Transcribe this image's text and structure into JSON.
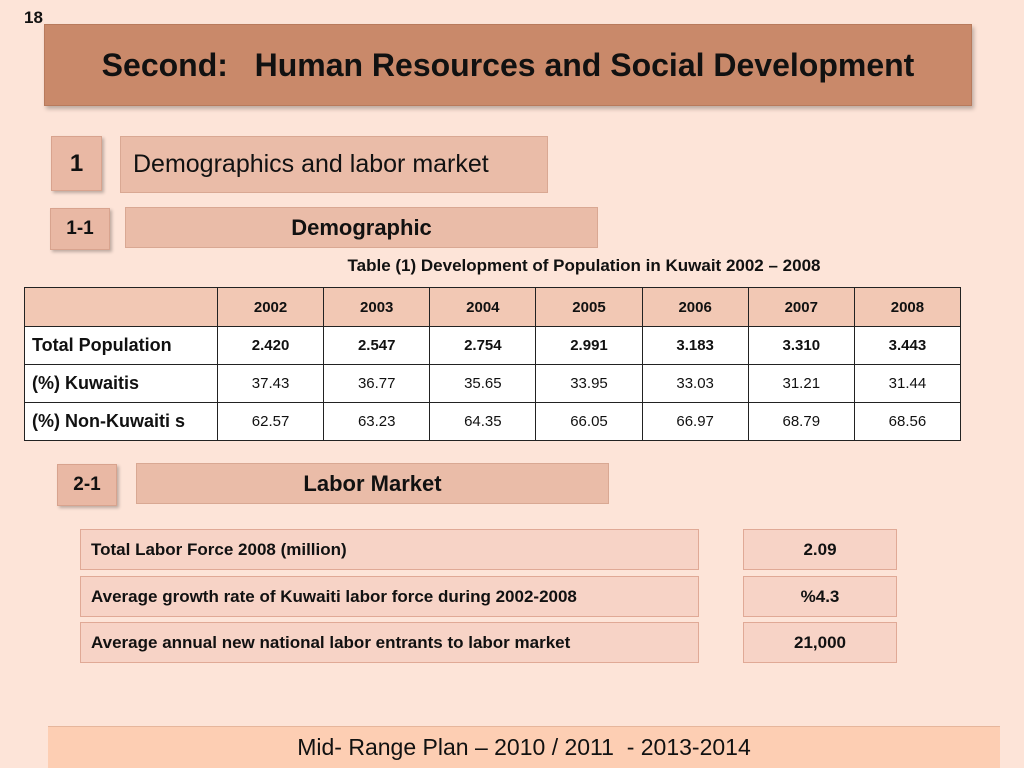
{
  "slide_number": "18",
  "title": "Second:   Human Resources and Social Development",
  "section1": {
    "number": "1",
    "title": "Demographics and labor market"
  },
  "section11": {
    "number": "1-1",
    "title": "Demographic"
  },
  "table": {
    "caption": "Table (1) Development of Population in Kuwait 2002 – 2008",
    "header_blank": "",
    "years": [
      "2002",
      "2003",
      "2004",
      "2005",
      "2006",
      "2007",
      "2008"
    ],
    "rows": [
      {
        "label": "Total Population",
        "values": [
          "2.420",
          "2.547",
          "2.754",
          "2.991",
          "3.183",
          "3.310",
          "3.443"
        ]
      },
      {
        "label": "(%) Kuwaitis",
        "values": [
          "37.43",
          "36.77",
          "35.65",
          "33.95",
          "33.03",
          "31.21",
          "31.44"
        ]
      },
      {
        "label": "(%) Non-Kuwaiti s",
        "values": [
          "62.57",
          "63.23",
          "64.35",
          "66.05",
          "66.97",
          "68.79",
          "68.56"
        ]
      }
    ]
  },
  "section21": {
    "number": "2-1",
    "title": "Labor Market"
  },
  "labor": [
    {
      "label": "Total Labor Force 2008 (million)",
      "value": "2.09"
    },
    {
      "label": "Average growth rate of Kuwaiti labor force during 2002-2008",
      "value": "%4.3"
    },
    {
      "label": "Average annual new national labor entrants to labor market",
      "value": "21,000"
    }
  ],
  "footer": "Mid- Range Plan – 2010 / 2011  - 2013-2014"
}
